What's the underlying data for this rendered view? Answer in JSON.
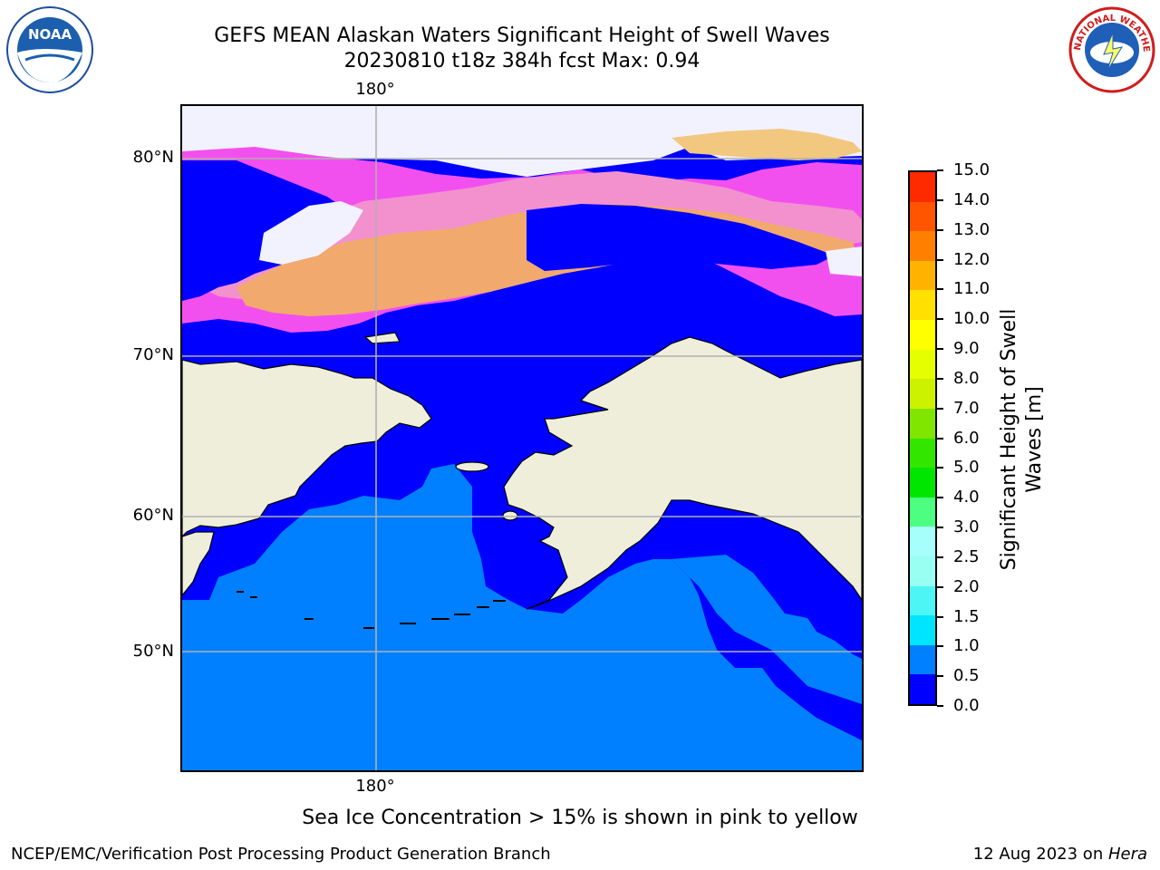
{
  "title": {
    "line1": "GEFS MEAN Alaskan Waters Significant Height of Swell Waves",
    "line2": "20230810 t18z 384h fcst   Max: 0.94"
  },
  "map": {
    "lat_labels": [
      "80°N",
      "70°N",
      "60°N",
      "50°N"
    ],
    "lon_label_top": "180°",
    "lon_label_bottom": "180°",
    "colors": {
      "land": "#eeeedb",
      "swell_0_0_5": "#0000ff",
      "swell_0_5_1_0": "#0080ff",
      "sea_ice": "#ff66ff",
      "grid": "#b0b0b0",
      "coast": "#000000"
    }
  },
  "colorbar": {
    "label_line1": "Significant Height of Swell",
    "label_line2": "Waves [m]",
    "ticks": [
      "0.0",
      "0.5",
      "1.0",
      "1.5",
      "2.0",
      "2.5",
      "3.0",
      "4.0",
      "5.0",
      "6.0",
      "7.0",
      "8.0",
      "9.0",
      "10.0",
      "11.0",
      "12.0",
      "13.0",
      "14.0",
      "15.0"
    ],
    "colors": [
      "#0000ff",
      "#0080ff",
      "#00e5ff",
      "#4df5f5",
      "#99fff2",
      "#a6fffa",
      "#4dff80",
      "#00e600",
      "#33e600",
      "#80e600",
      "#ccf200",
      "#e6ff00",
      "#ffff00",
      "#ffe000",
      "#ffb300",
      "#ff8000",
      "#ff5500",
      "#ff2a00"
    ]
  },
  "footnote": "Sea Ice Concentration > 15% is shown in pink to yellow",
  "footer": {
    "left": "NCEP/EMC/Verification Post Processing Product Generation Branch",
    "date": "12 Aug 2023 on ",
    "machine": "Hera"
  },
  "logos": {
    "left": "NOAA",
    "right": "NATIONAL WEATHER SERVICE"
  }
}
